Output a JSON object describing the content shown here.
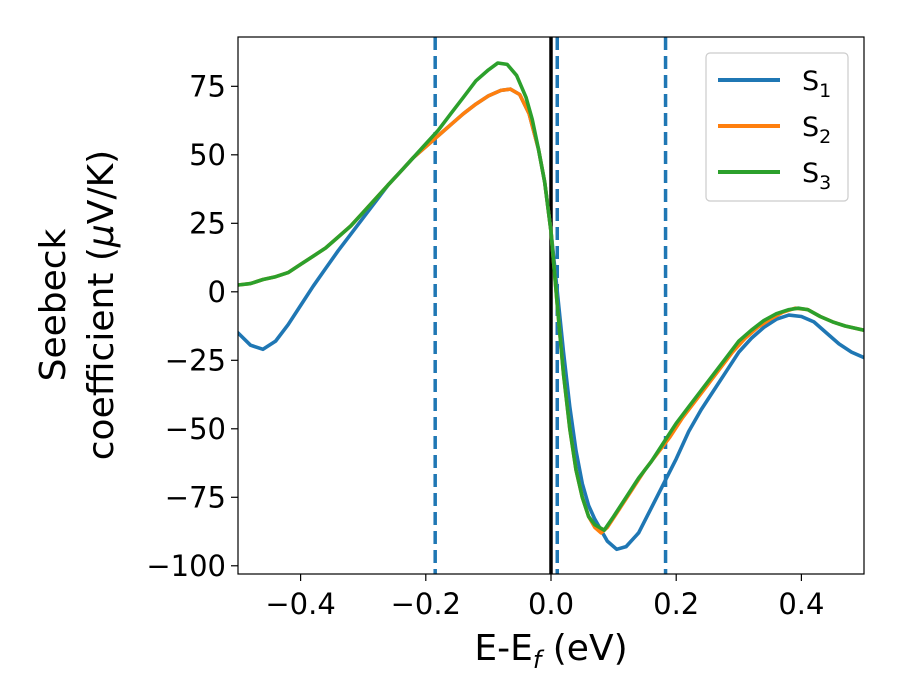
{
  "chart_data": {
    "type": "line",
    "title": "",
    "xlabel": {
      "main": "E-E",
      "sub": "f",
      "tail": " (eV)"
    },
    "ylabel": {
      "line1": "Seebeck",
      "line2_a": "coefficient  (",
      "line2_mu": "μ",
      "line2_b": "V/K)"
    },
    "xlim": [
      -0.5,
      0.5
    ],
    "ylim": [
      -103,
      93
    ],
    "xticks": [
      -0.4,
      -0.2,
      0.0,
      0.2,
      0.4
    ],
    "xtick_labels": [
      "−0.4",
      "−0.2",
      "0.0",
      "0.2",
      "0.4"
    ],
    "yticks": [
      -100,
      -75,
      -50,
      -25,
      0,
      25,
      50,
      75
    ],
    "ytick_labels": [
      "−100",
      "−75",
      "−50",
      "−25",
      "0",
      "25",
      "50",
      "75"
    ],
    "grid": false,
    "legend_position": "top-right",
    "vertical_lines": [
      {
        "x": -0.185,
        "style": "dashed",
        "color": "#1f77b4"
      },
      {
        "x": 0.0,
        "style": "solid",
        "color": "#000000"
      },
      {
        "x": 0.01,
        "style": "dashed",
        "color": "#1f77b4"
      },
      {
        "x": 0.183,
        "style": "dashed",
        "color": "#1f77b4"
      }
    ],
    "series": [
      {
        "name": "S",
        "sub": "1",
        "color": "#1f77b4",
        "points": [
          [
            -0.5,
            -15
          ],
          [
            -0.48,
            -19.5
          ],
          [
            -0.46,
            -21
          ],
          [
            -0.44,
            -18
          ],
          [
            -0.42,
            -12
          ],
          [
            -0.4,
            -5
          ],
          [
            -0.38,
            2
          ],
          [
            -0.36,
            8.5
          ],
          [
            -0.34,
            15
          ],
          [
            -0.32,
            21
          ],
          [
            -0.3,
            27
          ],
          [
            -0.28,
            33
          ],
          [
            -0.26,
            39
          ],
          [
            -0.24,
            44
          ],
          [
            -0.22,
            49
          ],
          [
            -0.2,
            53
          ],
          [
            -0.18,
            57
          ],
          [
            -0.16,
            61
          ],
          [
            -0.14,
            65
          ],
          [
            -0.12,
            68.5
          ],
          [
            -0.1,
            71.5
          ],
          [
            -0.08,
            73.5
          ],
          [
            -0.065,
            74
          ],
          [
            -0.05,
            72
          ],
          [
            -0.035,
            65
          ],
          [
            -0.02,
            52
          ],
          [
            -0.01,
            40
          ],
          [
            0.0,
            22
          ],
          [
            0.01,
            0
          ],
          [
            0.02,
            -22
          ],
          [
            0.03,
            -42
          ],
          [
            0.04,
            -58
          ],
          [
            0.05,
            -70
          ],
          [
            0.06,
            -78
          ],
          [
            0.07,
            -83
          ],
          [
            0.08,
            -87
          ],
          [
            0.09,
            -91
          ],
          [
            0.105,
            -94
          ],
          [
            0.12,
            -93
          ],
          [
            0.14,
            -88
          ],
          [
            0.16,
            -79
          ],
          [
            0.18,
            -70
          ],
          [
            0.2,
            -61
          ],
          [
            0.22,
            -51
          ],
          [
            0.24,
            -43
          ],
          [
            0.26,
            -36
          ],
          [
            0.28,
            -29
          ],
          [
            0.3,
            -22
          ],
          [
            0.32,
            -17
          ],
          [
            0.34,
            -13
          ],
          [
            0.36,
            -10
          ],
          [
            0.38,
            -8.5
          ],
          [
            0.4,
            -9
          ],
          [
            0.42,
            -11
          ],
          [
            0.44,
            -15
          ],
          [
            0.46,
            -19
          ],
          [
            0.48,
            -22
          ],
          [
            0.5,
            -24
          ]
        ]
      },
      {
        "name": "S",
        "sub": "2",
        "color": "#ff7f0e",
        "points": [
          [
            -0.5,
            2.5
          ],
          [
            -0.48,
            3
          ],
          [
            -0.46,
            4.5
          ],
          [
            -0.44,
            5.5
          ],
          [
            -0.42,
            7
          ],
          [
            -0.4,
            10
          ],
          [
            -0.38,
            13
          ],
          [
            -0.36,
            16
          ],
          [
            -0.34,
            20
          ],
          [
            -0.32,
            24
          ],
          [
            -0.3,
            29
          ],
          [
            -0.28,
            34
          ],
          [
            -0.26,
            39
          ],
          [
            -0.24,
            44
          ],
          [
            -0.22,
            49
          ],
          [
            -0.2,
            53
          ],
          [
            -0.18,
            57
          ],
          [
            -0.16,
            61
          ],
          [
            -0.14,
            65
          ],
          [
            -0.12,
            68.5
          ],
          [
            -0.1,
            71.5
          ],
          [
            -0.08,
            73.5
          ],
          [
            -0.065,
            74
          ],
          [
            -0.05,
            72
          ],
          [
            -0.035,
            65
          ],
          [
            -0.02,
            52
          ],
          [
            -0.01,
            40
          ],
          [
            0.0,
            22
          ],
          [
            0.01,
            -5
          ],
          [
            0.02,
            -30
          ],
          [
            0.03,
            -50
          ],
          [
            0.04,
            -65
          ],
          [
            0.05,
            -75
          ],
          [
            0.06,
            -82
          ],
          [
            0.07,
            -86
          ],
          [
            0.08,
            -88
          ],
          [
            0.09,
            -86
          ],
          [
            0.11,
            -79
          ],
          [
            0.13,
            -72
          ],
          [
            0.15,
            -65
          ],
          [
            0.17,
            -59
          ],
          [
            0.19,
            -53
          ],
          [
            0.21,
            -46
          ],
          [
            0.23,
            -40
          ],
          [
            0.25,
            -34
          ],
          [
            0.27,
            -28
          ],
          [
            0.29,
            -22
          ],
          [
            0.31,
            -17
          ],
          [
            0.33,
            -13
          ],
          [
            0.35,
            -10
          ],
          [
            0.37,
            -7.5
          ],
          [
            0.39,
            -6
          ],
          [
            0.41,
            -6.5
          ],
          [
            0.43,
            -9
          ],
          [
            0.45,
            -11
          ],
          [
            0.47,
            -12.5
          ],
          [
            0.5,
            -14
          ]
        ]
      },
      {
        "name": "S",
        "sub": "3",
        "color": "#2ca02c",
        "points": [
          [
            -0.5,
            2.5
          ],
          [
            -0.48,
            3
          ],
          [
            -0.46,
            4.5
          ],
          [
            -0.44,
            5.5
          ],
          [
            -0.42,
            7
          ],
          [
            -0.4,
            10
          ],
          [
            -0.38,
            13
          ],
          [
            -0.36,
            16
          ],
          [
            -0.34,
            20
          ],
          [
            -0.32,
            24
          ],
          [
            -0.3,
            29
          ],
          [
            -0.28,
            34
          ],
          [
            -0.26,
            39
          ],
          [
            -0.24,
            44
          ],
          [
            -0.22,
            49
          ],
          [
            -0.2,
            54
          ],
          [
            -0.18,
            59
          ],
          [
            -0.16,
            65
          ],
          [
            -0.14,
            71
          ],
          [
            -0.12,
            77
          ],
          [
            -0.1,
            81
          ],
          [
            -0.085,
            83.5
          ],
          [
            -0.07,
            83
          ],
          [
            -0.055,
            79
          ],
          [
            -0.04,
            71
          ],
          [
            -0.03,
            63
          ],
          [
            -0.02,
            52
          ],
          [
            -0.01,
            40
          ],
          [
            0.0,
            22
          ],
          [
            0.01,
            -5
          ],
          [
            0.02,
            -30
          ],
          [
            0.03,
            -50
          ],
          [
            0.04,
            -65
          ],
          [
            0.05,
            -75
          ],
          [
            0.06,
            -82
          ],
          [
            0.07,
            -85
          ],
          [
            0.085,
            -87
          ],
          [
            0.1,
            -82
          ],
          [
            0.12,
            -75
          ],
          [
            0.14,
            -68
          ],
          [
            0.16,
            -62
          ],
          [
            0.18,
            -55
          ],
          [
            0.2,
            -48
          ],
          [
            0.22,
            -42
          ],
          [
            0.24,
            -36
          ],
          [
            0.26,
            -30
          ],
          [
            0.28,
            -24
          ],
          [
            0.3,
            -18
          ],
          [
            0.32,
            -14
          ],
          [
            0.34,
            -10.5
          ],
          [
            0.36,
            -8
          ],
          [
            0.38,
            -6.5
          ],
          [
            0.395,
            -6
          ],
          [
            0.41,
            -6.5
          ],
          [
            0.43,
            -9
          ],
          [
            0.45,
            -11
          ],
          [
            0.47,
            -12.5
          ],
          [
            0.5,
            -14
          ]
        ]
      }
    ]
  }
}
